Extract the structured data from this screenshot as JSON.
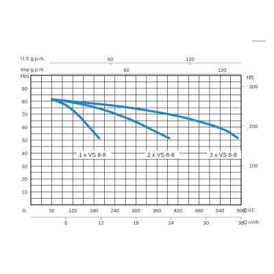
{
  "chart_data": {
    "type": "line",
    "colors": {
      "curve": "#1f86c7",
      "grid": "#1a1a1a",
      "text": "#3a3a3a"
    },
    "grid": true,
    "x_axis": {
      "unit": "Q l/1'",
      "range": [
        0,
        600
      ],
      "ticks": [
        "0",
        "60",
        "120",
        "180",
        "240",
        "300",
        "360",
        "420",
        "480",
        "540",
        "600"
      ]
    },
    "x_axis_m3h": {
      "unit": "Q m³/h",
      "range": [
        0,
        36
      ],
      "ticks": [
        "6",
        "12",
        "18",
        "24",
        "30",
        "36"
      ],
      "tick_values": [
        6,
        12,
        18,
        24,
        30,
        36
      ]
    },
    "x_axis_usgpm": {
      "label": "U.S.g.p.m.",
      "ticks": [
        "60",
        "120"
      ],
      "tick_values": [
        60,
        120
      ]
    },
    "x_axis_impgpm": {
      "label": "Imp.g.p.m.",
      "ticks": [
        "60",
        "120"
      ],
      "tick_values": [
        60,
        120
      ]
    },
    "y_axis": {
      "unit": "Hm",
      "range": [
        0,
        100
      ],
      "ticks": [
        "10",
        "20",
        "30",
        "40",
        "50",
        "60",
        "70",
        "80",
        "90"
      ]
    },
    "y_axis_right": {
      "unit": "Hft",
      "ticks": [
        "100",
        "200",
        "300"
      ],
      "tick_values": [
        100,
        200,
        300
      ]
    },
    "series": [
      {
        "name": "1 x VS 8-8",
        "x": [
          60,
          80,
          100,
          120,
          140,
          160,
          180,
          195
        ],
        "y": [
          81.5,
          79.5,
          77,
          73,
          68,
          62,
          56,
          51.5
        ]
      },
      {
        "name": "2 x VS 8-8",
        "x": [
          60,
          120,
          180,
          240,
          300,
          360,
          395
        ],
        "y": [
          81.5,
          79,
          75.5,
          70.5,
          64,
          56,
          51.5
        ]
      },
      {
        "name": "3 x VS 8-8",
        "x": [
          60,
          150,
          240,
          330,
          420,
          510,
          560,
          590
        ],
        "y": [
          81.5,
          79,
          76.5,
          73,
          68.5,
          62,
          57,
          51.5
        ]
      }
    ]
  }
}
